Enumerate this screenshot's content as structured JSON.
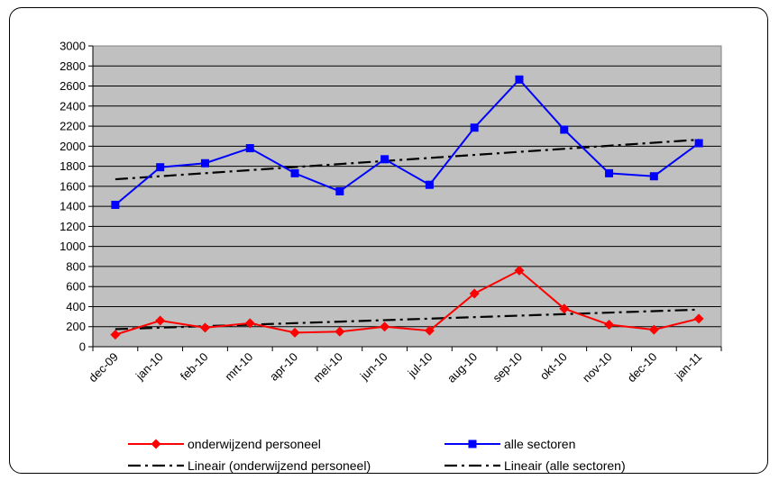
{
  "chart_data": {
    "type": "line",
    "title": "",
    "xlabel": "",
    "ylabel": "",
    "categories": [
      "dec-09",
      "jan-10",
      "feb-10",
      "mrt-10",
      "apr-10",
      "mei-10",
      "jun-10",
      "jul-10",
      "aug-10",
      "sep-10",
      "okt-10",
      "nov-10",
      "dec-10",
      "jan-11"
    ],
    "ylim": [
      0,
      3000
    ],
    "yticks": [
      0,
      200,
      400,
      600,
      800,
      1000,
      1200,
      1400,
      1600,
      1800,
      2000,
      2200,
      2400,
      2600,
      2800,
      3000
    ],
    "grid": true,
    "legend_position": "bottom",
    "plot_background": "#c0c0c0",
    "series": [
      {
        "name": "onderwijzend personeel",
        "color": "#ff0000",
        "marker": "diamond",
        "values": [
          120,
          260,
          190,
          235,
          140,
          150,
          200,
          160,
          530,
          760,
          380,
          220,
          170,
          280
        ]
      },
      {
        "name": "alle sectoren",
        "color": "#0000ff",
        "marker": "square",
        "values": [
          1415,
          1790,
          1830,
          1980,
          1730,
          1550,
          1870,
          1615,
          2185,
          2665,
          2165,
          1730,
          1700,
          2030
        ]
      }
    ],
    "trendlines": [
      {
        "name": "Lineair (onderwijzend personeel)",
        "color": "#000000",
        "style": "dash-dot",
        "start": 175,
        "end": 370
      },
      {
        "name": "Lineair (alle sectoren)",
        "color": "#000000",
        "style": "dash-dot",
        "start": 1670,
        "end": 2065
      }
    ]
  }
}
